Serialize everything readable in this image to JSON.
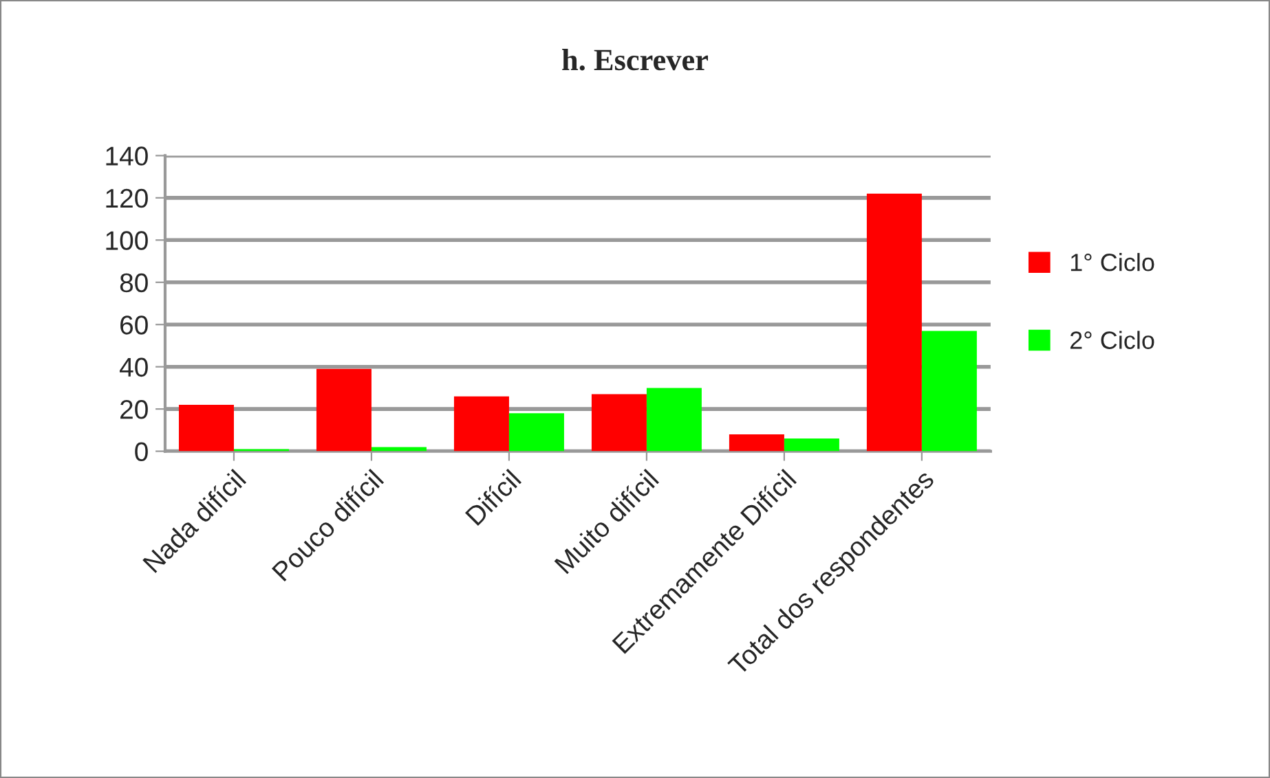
{
  "chart_data": {
    "type": "bar",
    "title": "h. Escrever",
    "categories": [
      "Nada difícil",
      "Pouco difícil",
      "Difícil",
      "Muito difícil",
      "Extremamente Difícil",
      "Total dos respondentes"
    ],
    "series": [
      {
        "name": "1° Ciclo",
        "color": "#ff0000",
        "values": [
          22,
          39,
          26,
          27,
          8,
          122
        ]
      },
      {
        "name": "2° Ciclo",
        "color": "#00ff00",
        "values": [
          1,
          2,
          18,
          30,
          6,
          57
        ]
      }
    ],
    "ylim": [
      0,
      140
    ],
    "yticks": [
      0,
      20,
      40,
      60,
      80,
      100,
      120,
      140
    ],
    "grid": "y",
    "legend": "right"
  }
}
